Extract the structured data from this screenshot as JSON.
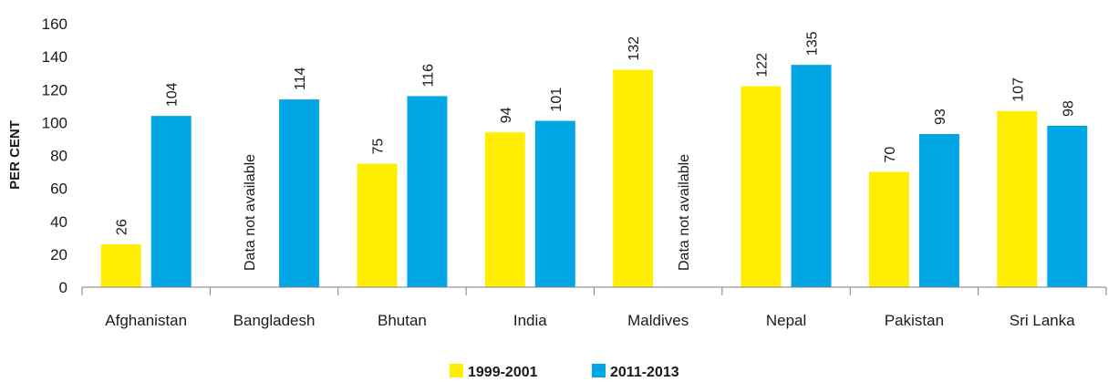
{
  "colors": {
    "series_1": "#ffee00",
    "series_2": "#00a7e4",
    "axis": "#7f7f7f",
    "text": "#1a1a1a"
  },
  "chart_data": {
    "type": "bar",
    "title": "",
    "xlabel": "",
    "ylabel": "PER CENT",
    "ylim": [
      0,
      160
    ],
    "yticks": [
      0,
      20,
      40,
      60,
      80,
      100,
      120,
      140,
      160
    ],
    "grid": false,
    "legend_position": "bottom-center",
    "categories": [
      "Afghanistan",
      "Bangladesh",
      "Bhutan",
      "India",
      "Maldives",
      "Nepal",
      "Pakistan",
      "Sri Lanka"
    ],
    "series": [
      {
        "name": "1999-2001",
        "color": "#ffee00",
        "values": [
          26,
          null,
          75,
          94,
          132,
          122,
          70,
          107
        ],
        "labels": [
          "26",
          "Data not available",
          "75",
          "94",
          "132",
          "122",
          "70",
          "107"
        ]
      },
      {
        "name": "2011-2013",
        "color": "#00a7e4",
        "values": [
          104,
          114,
          116,
          101,
          null,
          135,
          93,
          98
        ],
        "labels": [
          "104",
          "114",
          "116",
          "101",
          "Data not available",
          "135",
          "93",
          "98"
        ]
      }
    ]
  }
}
